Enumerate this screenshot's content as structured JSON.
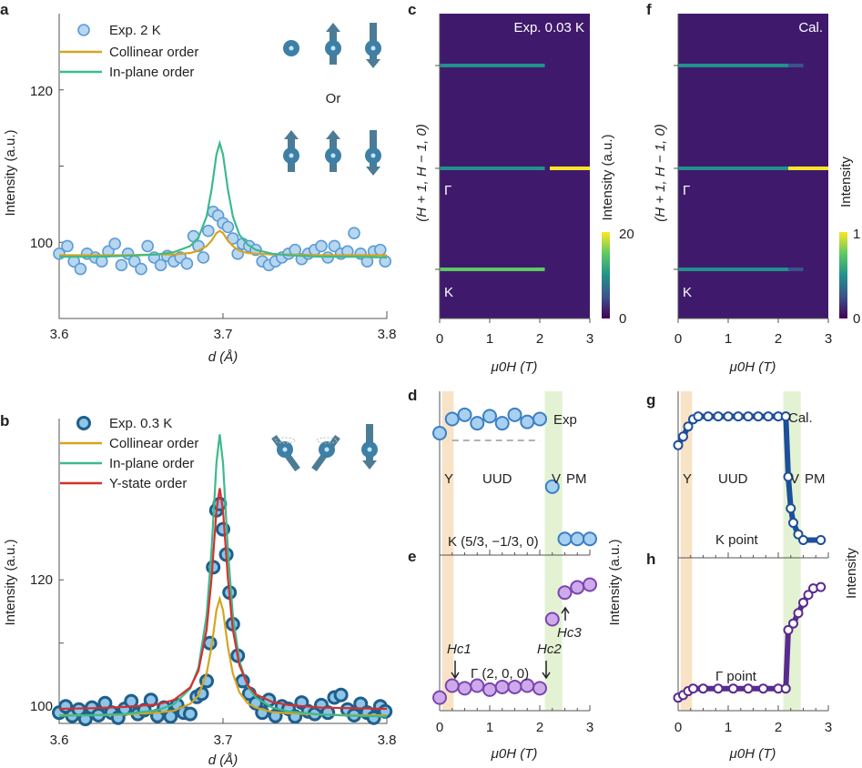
{
  "chart_data": [
    {
      "panel": "a",
      "type": "scatter",
      "xlabel": "d (Å)",
      "ylabel": "Intensity (a.u.)",
      "xlim": [
        3.6,
        3.8
      ],
      "ylim": [
        90,
        130
      ],
      "xticks": [
        "3.6",
        "3.7",
        "3.8"
      ],
      "yticks": [
        "100",
        "120"
      ],
      "legend_position": "top-left",
      "inset_text": "Or",
      "series": [
        {
          "name": "Exp. 2 K",
          "kind": "points",
          "color": "#5b9bd5",
          "fill": "#b7d6f0",
          "x": [
            3.6,
            3.605,
            3.609,
            3.613,
            3.617,
            3.622,
            3.626,
            3.63,
            3.634,
            3.638,
            3.642,
            3.646,
            3.65,
            3.654,
            3.658,
            3.662,
            3.666,
            3.67,
            3.674,
            3.678,
            3.682,
            3.685,
            3.688,
            3.691,
            3.694,
            3.697,
            3.7,
            3.703,
            3.706,
            3.709,
            3.712,
            3.716,
            3.72,
            3.724,
            3.728,
            3.732,
            3.736,
            3.74,
            3.744,
            3.748,
            3.752,
            3.756,
            3.76,
            3.764,
            3.768,
            3.772,
            3.776,
            3.78,
            3.784,
            3.788,
            3.792,
            3.796,
            3.799
          ],
          "y": [
            98.5,
            99.5,
            97.5,
            96.5,
            98.5,
            98,
            97.5,
            98.8,
            99.8,
            97,
            98.5,
            97.5,
            96.5,
            99.5,
            98,
            97,
            98.2,
            97.5,
            98,
            97.2,
            100.8,
            99.5,
            98,
            101.5,
            104,
            103.5,
            102.5,
            102,
            100.5,
            98.5,
            99.8,
            99.5,
            99,
            97.5,
            97,
            97.5,
            98,
            98.5,
            99,
            97.8,
            98.5,
            99,
            99.5,
            98,
            99.5,
            98.5,
            98.8,
            101.2,
            98.5,
            97.5,
            98.8,
            99,
            97.5
          ]
        },
        {
          "name": "Collinear order",
          "kind": "line",
          "color": "#d4a520",
          "x": [
            3.6,
            3.62,
            3.64,
            3.66,
            3.67,
            3.68,
            3.685,
            3.69,
            3.693,
            3.696,
            3.698,
            3.7,
            3.703,
            3.706,
            3.71,
            3.715,
            3.72,
            3.73,
            3.74,
            3.76,
            3.78,
            3.8
          ],
          "y": [
            98.3,
            98.3,
            98.3,
            98.4,
            98.4,
            98.6,
            98.9,
            99.5,
            100.2,
            101.2,
            101.5,
            101.2,
            100.2,
            99.5,
            98.9,
            98.6,
            98.5,
            98.4,
            98.4,
            98.3,
            98.3,
            98.3
          ]
        },
        {
          "name": "In-plane order",
          "kind": "line",
          "color": "#3dba8c",
          "x": [
            3.6,
            3.62,
            3.64,
            3.66,
            3.67,
            3.68,
            3.685,
            3.69,
            3.693,
            3.696,
            3.698,
            3.7,
            3.703,
            3.706,
            3.71,
            3.715,
            3.72,
            3.73,
            3.74,
            3.76,
            3.78,
            3.8
          ],
          "y": [
            98.1,
            98.1,
            98.2,
            98.4,
            98.7,
            99.5,
            100.6,
            103.4,
            106.9,
            111.5,
            113,
            111.5,
            106.9,
            103.4,
            101,
            99.7,
            99,
            98.5,
            98.3,
            98.1,
            98.1,
            98.0
          ]
        }
      ]
    },
    {
      "panel": "b",
      "type": "scatter",
      "xlabel": "d (Å)",
      "ylabel": "Intensity (a.u.)",
      "xlim": [
        3.6,
        3.8
      ],
      "ylim": [
        97.3,
        145.5
      ],
      "xticks": [
        "3.6",
        "3.7",
        "3.8"
      ],
      "yticks": [
        "100",
        "120"
      ],
      "legend_position": "top-left",
      "series": [
        {
          "name": "Exp. 0.3 K",
          "kind": "points",
          "color": "#1f5f8b",
          "fill": "#8ec5e8",
          "x": [
            3.6,
            3.604,
            3.608,
            3.612,
            3.616,
            3.62,
            3.624,
            3.628,
            3.632,
            3.636,
            3.64,
            3.644,
            3.648,
            3.652,
            3.656,
            3.66,
            3.664,
            3.668,
            3.672,
            3.676,
            3.68,
            3.684,
            3.687,
            3.69,
            3.692,
            3.694,
            3.696,
            3.698,
            3.7,
            3.702,
            3.704,
            3.706,
            3.709,
            3.712,
            3.716,
            3.72,
            3.724,
            3.728,
            3.732,
            3.736,
            3.74,
            3.744,
            3.748,
            3.752,
            3.756,
            3.76,
            3.764,
            3.768,
            3.772,
            3.776,
            3.78,
            3.784,
            3.788,
            3.792,
            3.796,
            3.799
          ],
          "y": [
            99,
            100,
            98.5,
            99.5,
            98,
            99.8,
            98.6,
            100.5,
            99,
            98.2,
            99.6,
            100.8,
            98.8,
            99.4,
            101,
            98.5,
            99.8,
            98.4,
            100.2,
            99,
            98.8,
            101.5,
            102,
            104,
            110,
            122,
            131,
            132,
            128,
            124,
            118,
            113,
            108,
            104,
            102,
            100.5,
            99,
            101,
            98.5,
            100,
            99.6,
            98.4,
            100.6,
            99.2,
            98.8,
            100.2,
            99,
            101.4,
            101.8,
            99.5,
            98.6,
            100.4,
            99,
            98.2,
            100,
            99.2
          ]
        },
        {
          "name": "Collinear order",
          "kind": "line",
          "color": "#d4a520",
          "x": [
            3.6,
            3.62,
            3.64,
            3.66,
            3.67,
            3.68,
            3.685,
            3.69,
            3.693,
            3.696,
            3.698,
            3.7,
            3.703,
            3.706,
            3.71,
            3.715,
            3.72,
            3.73,
            3.74,
            3.76,
            3.78,
            3.8
          ],
          "y": [
            98.6,
            98.6,
            98.7,
            99,
            99.3,
            100.4,
            101.7,
            105.2,
            109.4,
            115.2,
            117,
            115.2,
            109.4,
            105.2,
            102.2,
            100.5,
            99.8,
            99.1,
            98.9,
            98.7,
            98.6,
            98.6
          ]
        },
        {
          "name": "In-plane order",
          "kind": "line",
          "color": "#3dba8c",
          "x": [
            3.6,
            3.62,
            3.64,
            3.66,
            3.67,
            3.68,
            3.685,
            3.69,
            3.693,
            3.696,
            3.698,
            3.7,
            3.703,
            3.706,
            3.71,
            3.715,
            3.72,
            3.73,
            3.74,
            3.76,
            3.78,
            3.8
          ],
          "y": [
            98.5,
            98.6,
            98.8,
            99.4,
            100.3,
            102.8,
            106.1,
            114.4,
            124.7,
            138.5,
            143,
            138.5,
            124.7,
            114.4,
            107.2,
            103.2,
            101.4,
            99.8,
            99.2,
            98.7,
            98.5,
            98.4
          ]
        },
        {
          "name": "Y-state order",
          "kind": "line",
          "color": "#d62f2f",
          "x": [
            3.6,
            3.62,
            3.64,
            3.66,
            3.67,
            3.68,
            3.685,
            3.69,
            3.693,
            3.696,
            3.698,
            3.7,
            3.703,
            3.706,
            3.71,
            3.715,
            3.72,
            3.73,
            3.74,
            3.76,
            3.78,
            3.8
          ],
          "y": [
            99.6,
            99.7,
            99.9,
            100.3,
            101,
            103,
            105.6,
            112.1,
            120.2,
            131,
            134.5,
            131,
            120.2,
            112.1,
            106.5,
            103.4,
            101.9,
            100.7,
            100.2,
            99.8,
            99.7,
            99.6
          ]
        }
      ]
    },
    {
      "panel": "c",
      "type": "heatmap",
      "title": "Exp. 0.03 K",
      "xlabel": "μ0H (T)",
      "ylabel": "(H + 1, H − 1, 0)",
      "xlim": [
        0,
        3
      ],
      "xticks": [
        "0",
        "1",
        "2",
        "3"
      ],
      "point_labels": [
        "Γ",
        "K"
      ],
      "colorbar": {
        "label": "Intensity (a.u.)",
        "min_label": "0",
        "max_label": "20",
        "colormap": "viridis"
      },
      "streaks": [
        {
          "row": "upper",
          "segments": [
            {
              "from": 0,
              "to": 2.1,
              "level": 0.4
            }
          ]
        },
        {
          "row": "Γ",
          "segments": [
            {
              "from": 0,
              "to": 2.1,
              "level": 0.45
            },
            {
              "from": 2.2,
              "to": 3,
              "level": 1.0
            }
          ]
        },
        {
          "row": "K",
          "segments": [
            {
              "from": 0,
              "to": 2.1,
              "level": 0.85
            }
          ]
        }
      ]
    },
    {
      "panel": "f",
      "type": "heatmap",
      "title": "Cal.",
      "xlabel": "μ0H (T)",
      "ylabel": "(H + 1, H − 1, 0)",
      "xlim": [
        0,
        3
      ],
      "xticks": [
        "0",
        "1",
        "2",
        "3"
      ],
      "point_labels": [
        "Γ",
        "K"
      ],
      "colorbar": {
        "label": "Intensity",
        "min_label": "0",
        "max_label": "1",
        "colormap": "viridis"
      },
      "streaks": [
        {
          "row": "upper",
          "segments": [
            {
              "from": 0,
              "to": 2.2,
              "level": 0.5
            },
            {
              "from": 2.2,
              "to": 2.5,
              "level": 0.25
            }
          ]
        },
        {
          "row": "Γ",
          "segments": [
            {
              "from": 0,
              "to": 2.2,
              "level": 0.45
            },
            {
              "from": 2.2,
              "to": 3,
              "level": 1.0
            }
          ]
        },
        {
          "row": "K",
          "segments": [
            {
              "from": 0,
              "to": 2.2,
              "level": 0.55
            },
            {
              "from": 2.2,
              "to": 2.5,
              "level": 0.3
            }
          ]
        }
      ]
    },
    {
      "panel": "d",
      "type": "scatter",
      "title": "Exp",
      "phase_labels": [
        "Y",
        "UUD",
        "V",
        "PM"
      ],
      "annotation": "K (5/3, −1/3, 0)",
      "ylabel": "Intensity (a.u.)",
      "xlim": [
        0,
        3
      ],
      "ylim": [
        0,
        1
      ],
      "series": [
        {
          "kind": "points",
          "color": "#3b7fc4",
          "fill": "#a8d0f0",
          "x": [
            0,
            0.25,
            0.5,
            0.75,
            1,
            1.25,
            1.5,
            1.75,
            2,
            2.25,
            2.5,
            2.75,
            3
          ],
          "y": [
            0.8,
            0.9,
            0.93,
            0.87,
            0.92,
            0.87,
            0.93,
            0.88,
            0.9,
            0.42,
            0.05,
            0.05,
            0.05
          ]
        }
      ],
      "dashed_reference": {
        "x": [
          0.25,
          2
        ],
        "y": 0.8
      }
    },
    {
      "panel": "e",
      "type": "scatter",
      "annotation": "Γ (2, 0, 0)",
      "critical_fields": [
        "Hc1",
        "Hc2",
        "Hc3"
      ],
      "xlabel": "μ0H (T)",
      "xlim": [
        0,
        3
      ],
      "xticks": [
        "0",
        "1",
        "2",
        "3"
      ],
      "ylim": [
        0,
        1
      ],
      "series": [
        {
          "kind": "points",
          "color": "#7a45b0",
          "fill": "#cfaaea",
          "x": [
            0,
            0.25,
            0.5,
            0.75,
            1,
            1.25,
            1.5,
            1.75,
            2,
            2.25,
            2.5,
            2.75,
            3
          ],
          "y": [
            0.03,
            0.12,
            0.1,
            0.12,
            0.09,
            0.11,
            0.11,
            0.12,
            0.1,
            0.62,
            0.82,
            0.86,
            0.88
          ]
        }
      ]
    },
    {
      "panel": "g",
      "type": "line",
      "title": "Cal.",
      "phase_labels": [
        "Y",
        "UUD",
        "V",
        "PM"
      ],
      "annotation": "K point",
      "ylabel": "Intensity",
      "xlim": [
        0,
        3
      ],
      "ylim": [
        0,
        1
      ],
      "series": [
        {
          "kind": "line+points",
          "color": "#1d4f9a",
          "fill": "#ffffff",
          "x": [
            0,
            0.1,
            0.2,
            0.3,
            0.4,
            0.6,
            0.8,
            1.0,
            1.2,
            1.4,
            1.6,
            1.8,
            2.0,
            2.15,
            2.2,
            2.25,
            2.3,
            2.4,
            2.5,
            2.85
          ],
          "y": [
            0.72,
            0.78,
            0.85,
            0.9,
            0.92,
            0.92,
            0.92,
            0.92,
            0.92,
            0.92,
            0.92,
            0.92,
            0.92,
            0.92,
            0.5,
            0.28,
            0.18,
            0.1,
            0.06,
            0.06
          ]
        }
      ]
    },
    {
      "panel": "h",
      "type": "line",
      "annotation": "Γ point",
      "xlabel": "μ0H (T)",
      "xlim": [
        0,
        3
      ],
      "xticks": [
        "0",
        "1",
        "2",
        "3"
      ],
      "ylim": [
        0,
        1
      ],
      "series": [
        {
          "kind": "line+points",
          "color": "#5a2a8f",
          "fill": "#ffffff",
          "x": [
            0,
            0.1,
            0.2,
            0.3,
            0.5,
            0.8,
            1.1,
            1.4,
            1.7,
            2.0,
            2.15,
            2.2,
            2.3,
            2.4,
            2.5,
            2.6,
            2.7,
            2.85
          ],
          "y": [
            0.03,
            0.05,
            0.08,
            0.1,
            0.1,
            0.1,
            0.1,
            0.1,
            0.1,
            0.1,
            0.1,
            0.55,
            0.6,
            0.68,
            0.76,
            0.82,
            0.87,
            0.88
          ]
        }
      ]
    }
  ],
  "panel_letters": [
    "a",
    "b",
    "c",
    "d",
    "e",
    "f",
    "g",
    "h"
  ],
  "colors": {
    "y_phase_band": "#f6dcb8",
    "v_phase_band": "#dcefc8",
    "heatmap_bg": "#3f1a6c"
  }
}
